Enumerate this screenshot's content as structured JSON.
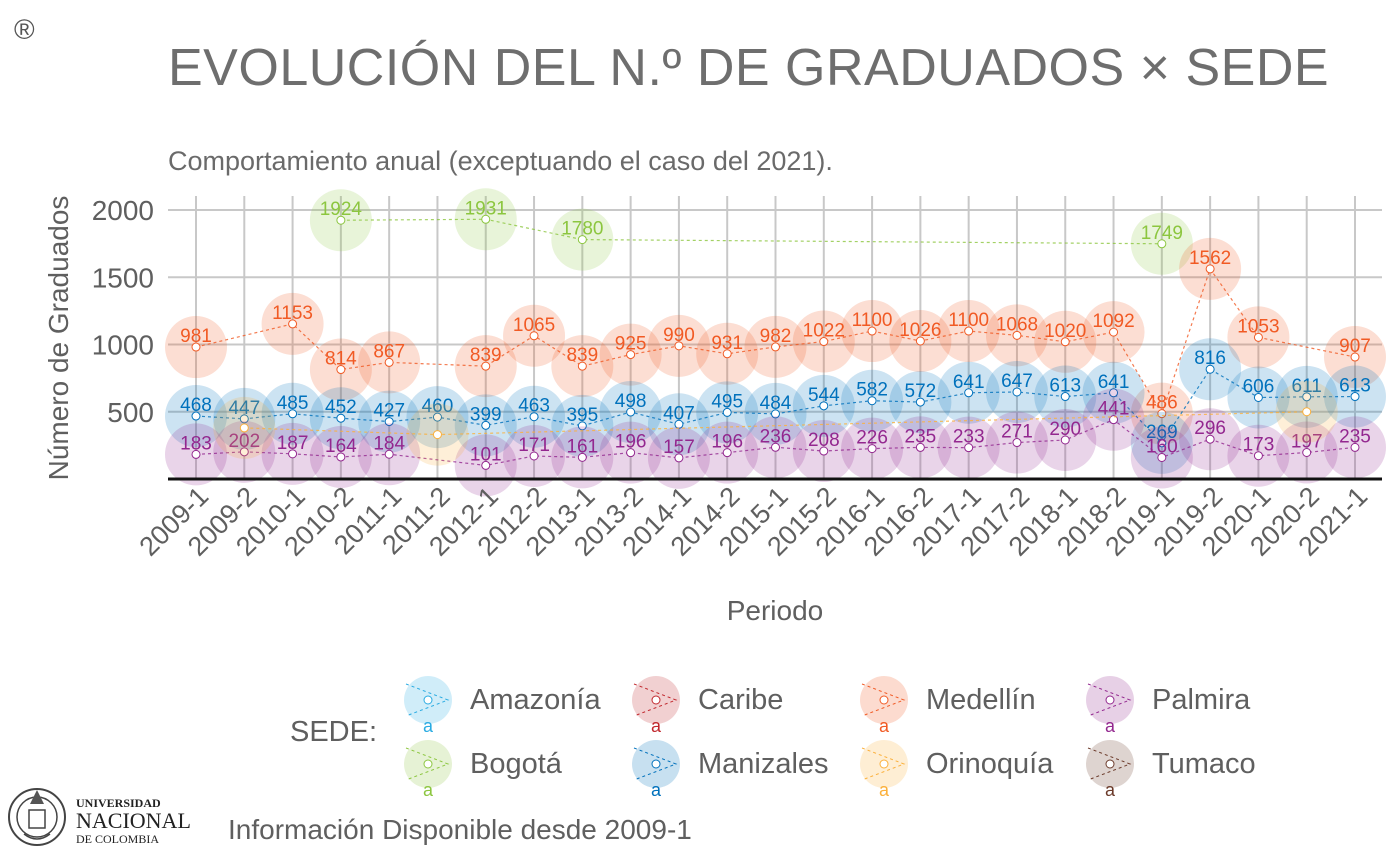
{
  "title": "EVOLUCIÓN DEL N.º DE GRADUADOS × SEDE",
  "subtitle": "Comportamiento anual (exceptuando el caso del 2021).",
  "registered_mark": "®",
  "footer": "Información Disponible desde 2009-1",
  "logo": {
    "line1": "UNIVERSIDAD",
    "line2": "NACIONAL",
    "line3": "DE COLOMBIA"
  },
  "legend": {
    "title": "SEDE:",
    "key_glyph": "a",
    "items": [
      {
        "name": "Amazonía",
        "color": "#29abe2"
      },
      {
        "name": "Caribe",
        "color": "#c1272d"
      },
      {
        "name": "Medellín",
        "color": "#f15a24"
      },
      {
        "name": "Palmira",
        "color": "#93278f"
      },
      {
        "name": "Bogotá",
        "color": "#8cc63f"
      },
      {
        "name": "Manizales",
        "color": "#0071bc"
      },
      {
        "name": "Orinoquía",
        "color": "#fbb03b"
      },
      {
        "name": "Tumaco",
        "color": "#6b3a2a"
      }
    ]
  },
  "chart_data": {
    "type": "line",
    "xlabel": "Periodo",
    "ylabel": "Número de Graduados",
    "ylim": [
      0,
      2000
    ],
    "yticks": [
      500,
      1000,
      1500,
      2000
    ],
    "grid": true,
    "legend_position": "bottom",
    "categories": [
      "2009-1",
      "2009-2",
      "2010-1",
      "2010-2",
      "2011-1",
      "2011-2",
      "2012-1",
      "2012-2",
      "2013-1",
      "2013-2",
      "2014-1",
      "2014-2",
      "2015-1",
      "2015-2",
      "2016-1",
      "2016-2",
      "2017-1",
      "2017-2",
      "2018-1",
      "2018-2",
      "2019-1",
      "2019-2",
      "2020-1",
      "2020-2",
      "2021-1"
    ],
    "series": [
      {
        "name": "Bogotá",
        "color": "#8cc63f",
        "labeled": true,
        "values": [
          null,
          null,
          null,
          1924,
          null,
          null,
          1931,
          null,
          1780,
          null,
          null,
          null,
          null,
          null,
          null,
          null,
          null,
          null,
          null,
          null,
          1749,
          null,
          null,
          null,
          null
        ]
      },
      {
        "name": "Medellín",
        "color": "#f15a24",
        "labeled": true,
        "values": [
          981,
          null,
          1153,
          814,
          867,
          null,
          839,
          1065,
          839,
          925,
          990,
          931,
          982,
          1022,
          1100,
          1026,
          1100,
          1068,
          1020,
          1092,
          486,
          1562,
          1053,
          null,
          907
        ]
      },
      {
        "name": "Manizales",
        "color": "#0071bc",
        "labeled": true,
        "values": [
          468,
          447,
          485,
          452,
          427,
          460,
          399,
          463,
          395,
          498,
          407,
          495,
          484,
          544,
          582,
          572,
          641,
          647,
          613,
          641,
          269,
          816,
          606,
          611,
          613
        ]
      },
      {
        "name": "Palmira",
        "color": "#93278f",
        "labeled": true,
        "values": [
          183,
          202,
          187,
          164,
          184,
          null,
          101,
          171,
          161,
          196,
          157,
          196,
          236,
          208,
          226,
          235,
          233,
          271,
          290,
          441,
          160,
          296,
          173,
          197,
          235
        ]
      },
      {
        "name": "Caribe",
        "color": "#c1272d",
        "labeled": false,
        "values": [
          null,
          null,
          null,
          null,
          null,
          null,
          null,
          null,
          null,
          null,
          null,
          null,
          null,
          null,
          null,
          null,
          null,
          null,
          null,
          null,
          null,
          null,
          null,
          null,
          null
        ]
      },
      {
        "name": "Amazonía",
        "color": "#29abe2",
        "labeled": false,
        "values": [
          null,
          null,
          null,
          null,
          null,
          null,
          null,
          null,
          null,
          null,
          null,
          null,
          null,
          null,
          null,
          null,
          null,
          null,
          null,
          null,
          null,
          null,
          null,
          null,
          null
        ]
      },
      {
        "name": "Orinoquía",
        "color": "#fbb03b",
        "labeled": false,
        "values": [
          null,
          380,
          null,
          null,
          null,
          330,
          null,
          null,
          null,
          null,
          null,
          null,
          null,
          null,
          null,
          null,
          null,
          null,
          null,
          null,
          null,
          null,
          null,
          500,
          null
        ]
      },
      {
        "name": "Tumaco",
        "color": "#6b3a2a",
        "labeled": false,
        "values": [
          null,
          null,
          null,
          null,
          null,
          null,
          null,
          null,
          null,
          null,
          null,
          null,
          null,
          null,
          null,
          null,
          null,
          null,
          null,
          null,
          null,
          null,
          null,
          null,
          null
        ]
      }
    ]
  }
}
